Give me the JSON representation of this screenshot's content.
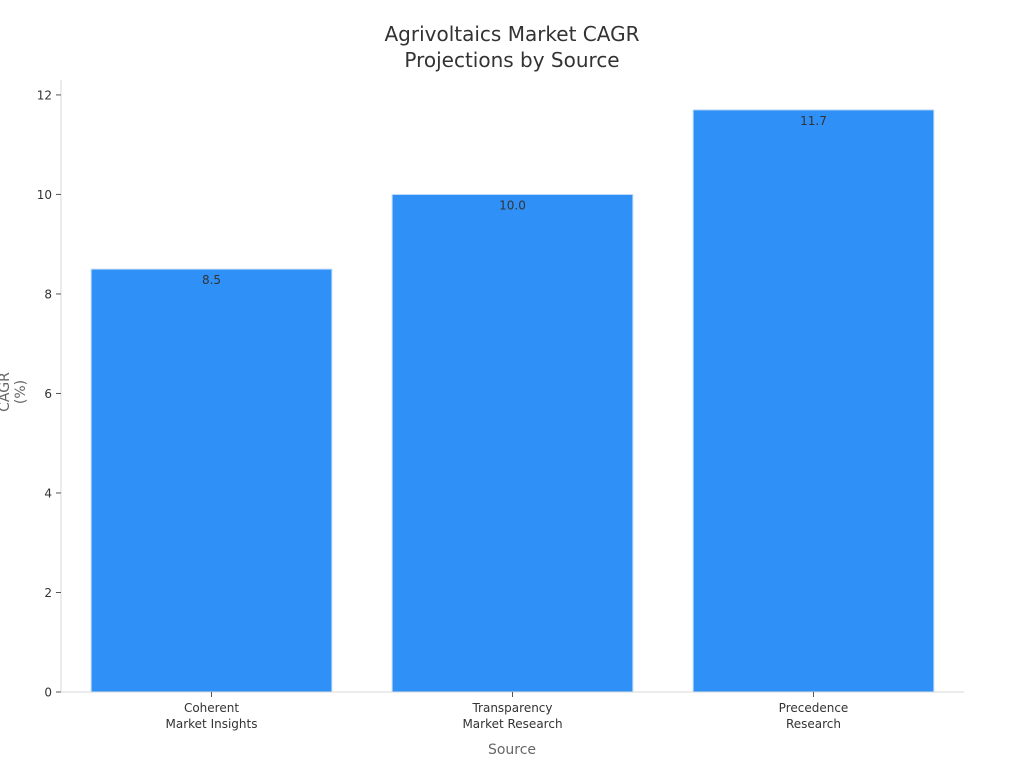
{
  "chart_data": {
    "type": "bar",
    "title_lines": [
      "Agrivoltaics Market CAGR",
      "Projections by Source"
    ],
    "xlabel": "Source",
    "ylabel": "CAGR (%)",
    "categories": [
      [
        "Coherent",
        "Market Insights"
      ],
      [
        "Transparency",
        "Market Research"
      ],
      [
        "Precedence",
        "Research"
      ]
    ],
    "values": [
      8.5,
      10.0,
      11.7
    ],
    "value_labels": [
      "8.5",
      "10.0",
      "11.7"
    ],
    "ylim": [
      0,
      12.3
    ],
    "yticks": [
      0,
      2,
      4,
      6,
      8,
      10,
      12
    ],
    "grid": false,
    "bar_color": "#2f91f8",
    "bar_edge_color": "#c9dff8"
  }
}
